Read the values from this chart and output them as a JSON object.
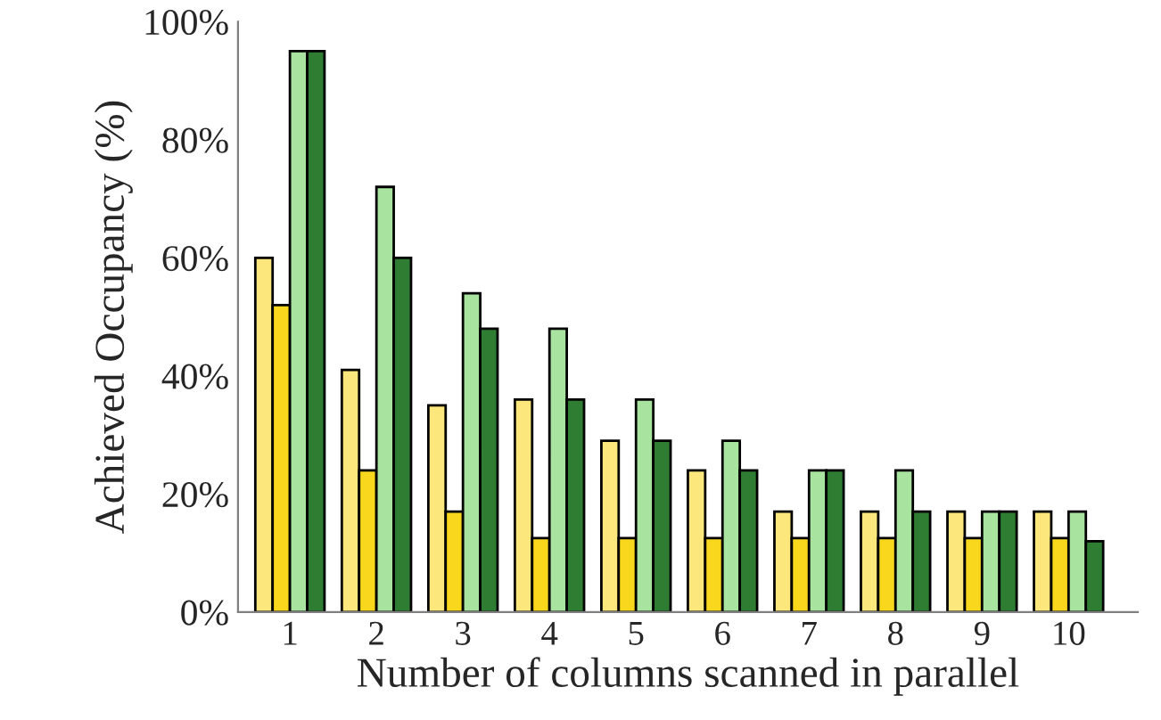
{
  "chart_data": {
    "type": "bar",
    "xlabel": "Number of columns scanned in parallel",
    "ylabel": "Achieved Occupancy (%)",
    "categories": [
      "1",
      "2",
      "3",
      "4",
      "5",
      "6",
      "7",
      "8",
      "9",
      "10"
    ],
    "series": [
      {
        "color": "#fce77d",
        "values": [
          60,
          41,
          35,
          36,
          29,
          24,
          17,
          17,
          17,
          17
        ]
      },
      {
        "color": "#f9d71c",
        "values": [
          52,
          24,
          17,
          12.5,
          12.5,
          12.5,
          12.5,
          12.5,
          12.5,
          12.5
        ]
      },
      {
        "color": "#a8e4a0",
        "values": [
          95,
          72,
          54,
          48,
          36,
          29,
          24,
          24,
          17,
          17
        ]
      },
      {
        "color": "#2e7d32",
        "values": [
          95,
          60,
          48,
          36,
          29,
          24,
          24,
          17,
          17,
          12
        ]
      }
    ],
    "ylim": [
      0,
      100
    ],
    "yticks": [
      {
        "value": 0,
        "label": "0%"
      },
      {
        "value": 20,
        "label": "20%"
      },
      {
        "value": 40,
        "label": "40%"
      },
      {
        "value": 60,
        "label": "60%"
      },
      {
        "value": 80,
        "label": "80%"
      },
      {
        "value": 100,
        "label": "100%"
      }
    ],
    "grid": false
  }
}
